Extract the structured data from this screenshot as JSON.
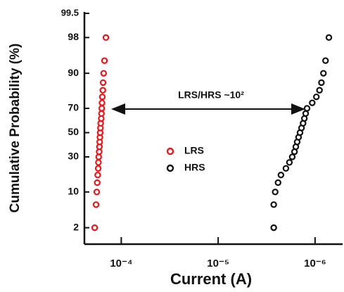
{
  "chart_data": {
    "type": "scatter",
    "xlabel": "Current (A)",
    "ylabel": "Cumulative Probability (%)",
    "annotation": "LRS/HRS ~10²",
    "xscale": "log",
    "yscale": "probability",
    "xlim": [
      0.00024,
      5.2e-07
    ],
    "ylim": [
      0.8,
      99.5
    ],
    "xticks": [
      {
        "value": 0.0001,
        "label": "10⁻⁴"
      },
      {
        "value": 1e-05,
        "label": "10⁻⁵"
      },
      {
        "value": 1e-06,
        "label": "10⁻⁶"
      }
    ],
    "yticks": [
      2,
      10,
      30,
      50,
      70,
      90,
      98,
      99.5
    ],
    "legend": "center",
    "series": [
      {
        "name": "LRS",
        "color": "#e8171b",
        "x": [
          0.000188,
          0.000182,
          0.000179,
          0.000177,
          0.000175,
          0.000173,
          0.000172,
          0.000171,
          0.000169,
          0.000168,
          0.000167,
          0.000166,
          0.000165,
          0.000164,
          0.000163,
          0.000161,
          0.00016,
          0.000159,
          0.000158,
          0.000157,
          0.000155,
          0.000154,
          0.000152,
          0.000149,
          0.000144
        ],
        "values": [
          2,
          6,
          10,
          14,
          18,
          22,
          26,
          30,
          34,
          38,
          42,
          46,
          50,
          54,
          58,
          62,
          66,
          70,
          74,
          78,
          82,
          86,
          90,
          94,
          98
        ]
      },
      {
        "name": "HRS",
        "color": "#111111",
        "x": [
          2.67e-06,
          2.67e-06,
          2.58e-06,
          2.41e-06,
          2.25e-06,
          2e-06,
          1.84e-06,
          1.72e-06,
          1.63e-06,
          1.58e-06,
          1.53e-06,
          1.48e-06,
          1.43e-06,
          1.38e-06,
          1.33e-06,
          1.29e-06,
          1.25e-06,
          1.21e-06,
          1.07e-06,
          9.7e-07,
          9e-07,
          8.6e-07,
          8.2e-07,
          7.8e-07,
          7.2e-07
        ],
        "values": [
          2,
          6,
          10,
          14,
          18,
          22,
          26,
          30,
          34,
          38,
          42,
          46,
          50,
          54,
          58,
          62,
          66,
          70,
          74,
          78,
          82,
          86,
          90,
          94,
          98
        ]
      }
    ]
  }
}
